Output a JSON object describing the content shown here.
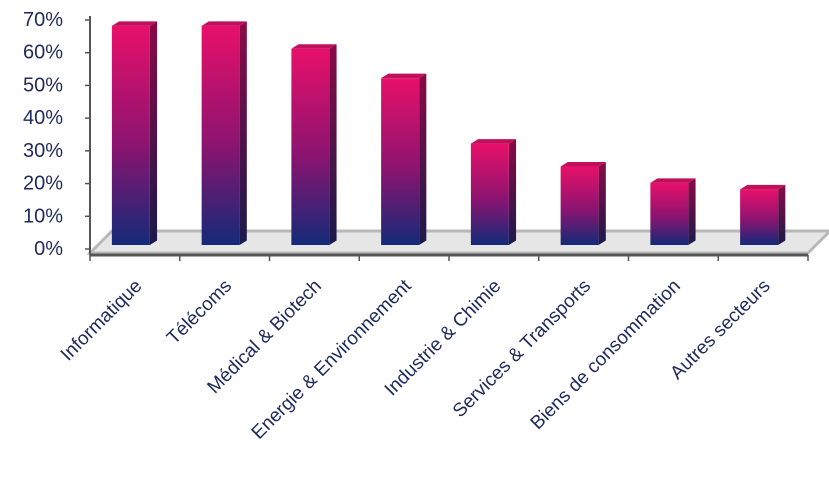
{
  "chart_data": {
    "type": "bar",
    "title": "",
    "xlabel": "",
    "ylabel": "",
    "categories": [
      "Informatique",
      "Télécoms",
      "Médical & Biotech",
      "Energie & Environnement",
      "Industrie & Chimie",
      "Services & Transports",
      "Biens de consommation",
      "Autres secteurs"
    ],
    "values": [
      67,
      67,
      60,
      51,
      31,
      24,
      19,
      17
    ],
    "value_unit": "%",
    "ylim": [
      0,
      70
    ],
    "yticks": [
      "0%",
      "10%",
      "20%",
      "30%",
      "40%",
      "50%",
      "60%",
      "70%"
    ],
    "grid": false,
    "legend": "none",
    "colors": {
      "bar_top": "#e8106a",
      "bar_bottom": "#132a78",
      "bar_side": "#5a0a3a",
      "floor": "#b8b8b8",
      "axis": "#555555",
      "text": "#1f2a5c"
    }
  }
}
